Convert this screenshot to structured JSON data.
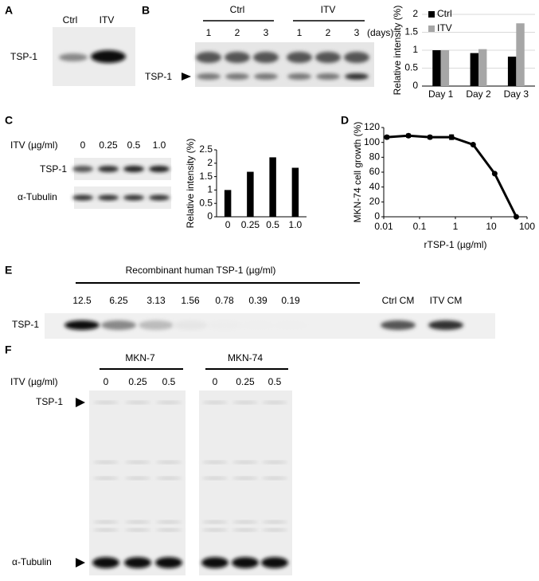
{
  "panel_labels": [
    "A",
    "B",
    "C",
    "D",
    "E",
    "F"
  ],
  "blot_a": {
    "lanes": [
      "Ctrl",
      "ITV"
    ],
    "band": "TSP-1"
  },
  "blot_b": {
    "groups": [
      "Ctrl",
      "ITV"
    ],
    "lanes": [
      "1",
      "2",
      "3",
      "1",
      "2",
      "3"
    ],
    "unit": "(days)",
    "band": "TSP-1"
  },
  "blot_c": {
    "row_label": "ITV (µg/ml)",
    "lanes": [
      "0",
      "0.25",
      "0.5",
      "1.0"
    ],
    "bands": [
      "TSP-1",
      "α-Tubulin"
    ]
  },
  "blot_e": {
    "header": "Recombinant human TSP-1 (µg/ml)",
    "lanes": [
      "12.5",
      "6.25",
      "3.13",
      "1.56",
      "0.78",
      "0.39",
      "0.19",
      "Ctrl CM",
      "ITV CM"
    ],
    "band": "TSP-1"
  },
  "blot_f": {
    "cell_lines": [
      "MKN-7",
      "MKN-74"
    ],
    "row_label": "ITV (µg/ml)",
    "lanes": [
      "0",
      "0.25",
      "0.5",
      "0",
      "0.25",
      "0.5"
    ],
    "bands": [
      "TSP-1",
      "α-Tubulin"
    ]
  },
  "chart_data": [
    {
      "type": "bar",
      "y_label": "Relative intensity (%)",
      "categories": [
        "Day 1",
        "Day 2",
        "Day 3"
      ],
      "series": [
        {
          "name": "Ctrl",
          "color": "#000000",
          "values": [
            1,
            0.92,
            0.82
          ]
        },
        {
          "name": "ITV",
          "color": "#a6a6a6",
          "values": [
            1,
            1.03,
            1.75
          ]
        }
      ],
      "ylim": [
        0,
        2
      ],
      "yticks": [
        0,
        0.5,
        1,
        1.5,
        2
      ],
      "grid": true,
      "legend": "top-left"
    },
    {
      "type": "bar",
      "y_label": "Relative intensity (%)",
      "categories": [
        "0",
        "0.25",
        "0.5",
        "1.0"
      ],
      "values": [
        1,
        1.68,
        2.22,
        1.83
      ],
      "color": "#000000",
      "ylim": [
        0,
        2.5
      ],
      "yticks": [
        0,
        0.5,
        1,
        1.5,
        2,
        2.5
      ],
      "grid": false
    },
    {
      "type": "line",
      "x_label": "rTSP-1 (µg/ml)",
      "y_label": "MKN-74 cell growth (%)",
      "x": [
        0.0122,
        0.049,
        0.195,
        0.78,
        3.13,
        12.5,
        50
      ],
      "values": [
        107,
        109,
        107,
        107,
        97,
        58,
        0
      ],
      "errors": [
        2,
        2,
        2,
        3,
        1,
        1,
        0
      ],
      "color": "#000000",
      "xlog": true,
      "xlim": [
        0.01,
        100
      ],
      "xticks": [
        0.01,
        0.1,
        1,
        10,
        100
      ],
      "ylim": [
        0,
        120
      ],
      "yticks": [
        0,
        20,
        40,
        60,
        80,
        100,
        120
      ]
    }
  ]
}
